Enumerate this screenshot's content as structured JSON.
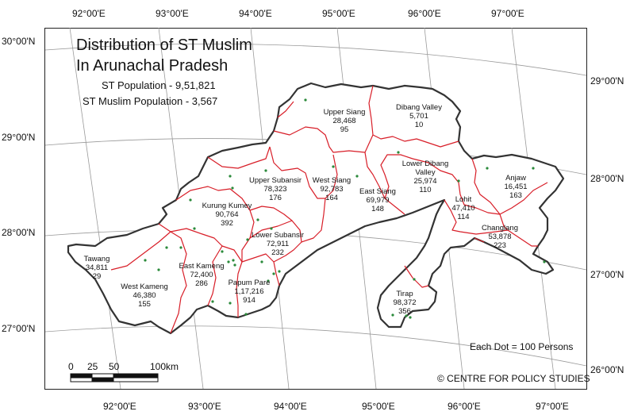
{
  "title": {
    "line1": "Distribution of ST Muslim",
    "line2": "In Arunachal Pradesh",
    "st_population": "ST Population - 9,51,821",
    "st_muslim_population": "ST Muslim Population - 3,567"
  },
  "axes": {
    "top_longitudes": [
      "92°00'E",
      "93°00'E",
      "94°00'E",
      "95°00'E",
      "96°00'E",
      "97°00'E"
    ],
    "bottom_longitudes": [
      "92°00'E",
      "93°00'E",
      "94°00'E",
      "95°00'E",
      "96°00'E",
      "97°00'E"
    ],
    "left_latitudes": [
      "30°00'N",
      "29°00'N",
      "28°00'N",
      "27°00'N"
    ],
    "right_latitudes": [
      "29°00'N",
      "28°00'N",
      "27°00'N",
      "26°00'N"
    ]
  },
  "districts": [
    {
      "name": "Tawang",
      "population": "34,811",
      "muslims": "29"
    },
    {
      "name": "West Kameng",
      "population": "46,380",
      "muslims": "155"
    },
    {
      "name": "East Kameng",
      "population": "72,400",
      "muslims": "286"
    },
    {
      "name": "Papum Pare",
      "population": "1,17,216",
      "muslims": "914"
    },
    {
      "name": "Kurung Kumey",
      "population": "90,764",
      "muslims": "392"
    },
    {
      "name": "Lower Subansir",
      "population": "72,911",
      "muslims": "232"
    },
    {
      "name": "Upper Subansir",
      "population": "78,323",
      "muslims": "176"
    },
    {
      "name": "West Siang",
      "population": "92,783",
      "muslims": "164"
    },
    {
      "name": "East Siang",
      "population": "69,979",
      "muslims": "148"
    },
    {
      "name": "Upper Siang",
      "population": "28,468",
      "muslims": "95"
    },
    {
      "name": "Dibang Valley",
      "population": "5,701",
      "muslims": "10"
    },
    {
      "name": "Lower Dibang Valley",
      "population": "25,974",
      "muslims": "110"
    },
    {
      "name": "Lohit",
      "population": "47,410",
      "muslims": "114"
    },
    {
      "name": "Anjaw",
      "population": "16,451",
      "muslims": "163"
    },
    {
      "name": "Changlang",
      "population": "53,878",
      "muslims": "223"
    },
    {
      "name": "Tirap",
      "population": "98,372",
      "muslims": "356"
    }
  ],
  "legend": {
    "dot_value": "Each Dot = 100 Persons"
  },
  "scale_bar": {
    "labels": [
      "0",
      "25",
      "50",
      "100km"
    ]
  },
  "credit": "© CENTRE FOR POLICY STUDIES",
  "colors": {
    "state_border": "#333333",
    "district_border": "#d81e28",
    "dots": "#2a8a3a"
  }
}
